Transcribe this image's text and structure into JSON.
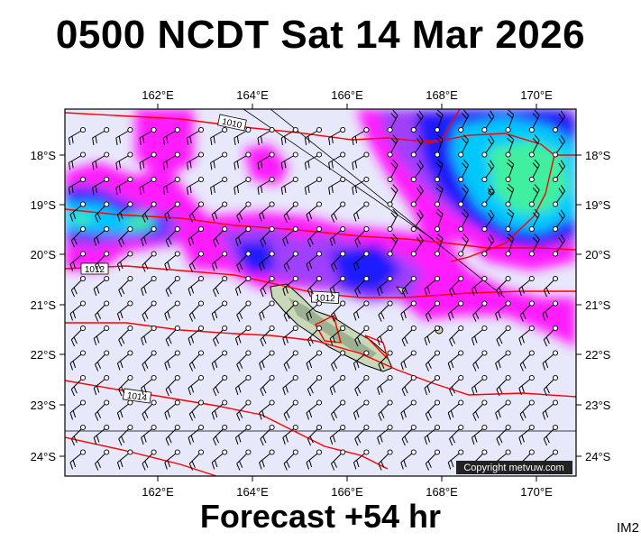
{
  "title": "0500 NCDT Sat 14 Mar 2026",
  "footer": "Forecast +54 hr",
  "code": "IM2",
  "copyright": "Copyright metvuw.com",
  "lon_labels": [
    "162°E",
    "164°E",
    "166°E",
    "168°E",
    "170°E"
  ],
  "lat_labels": [
    "18°S",
    "19°S",
    "20°S",
    "21°S",
    "22°S",
    "23°S",
    "24°S"
  ],
  "isobars": [
    "1010",
    "1012",
    "1012",
    "1014"
  ],
  "colors": {
    "background": "#e8e8fb",
    "magenta": "#ff1cff",
    "purple": "#b040ff",
    "blue": "#1a1aff",
    "cyan": "#00c8ff",
    "green": "#40f0a0",
    "isobar": "#ff0000",
    "land": "#c8d8b8"
  }
}
